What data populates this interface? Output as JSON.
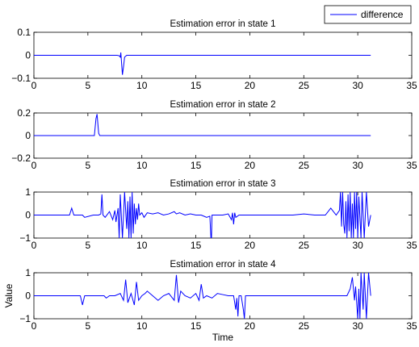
{
  "legend": {
    "label": "difference",
    "placement": "top-right",
    "color": "#0000ff"
  },
  "chart_data": [
    {
      "type": "line",
      "title": "Estimation error in state 1",
      "xlabel": "",
      "ylabel": "",
      "xlim": [
        0,
        35
      ],
      "ylim": [
        -0.1,
        0.1
      ],
      "xticks": [
        "0",
        "5",
        "10",
        "15",
        "20",
        "25",
        "30",
        "35"
      ],
      "yticks": [
        "−0.1",
        "0",
        "0.1"
      ],
      "ytick_values": [
        -0.1,
        0,
        0.1
      ],
      "series": [
        {
          "name": "difference",
          "color": "#0000ff",
          "x": [
            0,
            7.7,
            7.9,
            8.0,
            8.05,
            8.1,
            8.2,
            8.3,
            8.4,
            8.6,
            9.0,
            31.2
          ],
          "y": [
            0,
            0,
            -0.002,
            -0.008,
            0.012,
            -0.02,
            -0.085,
            -0.05,
            -0.008,
            0,
            0,
            0
          ]
        }
      ]
    },
    {
      "type": "line",
      "title": "Estimation error in state 2",
      "xlabel": "",
      "ylabel": "",
      "xlim": [
        0,
        35
      ],
      "ylim": [
        -0.2,
        0.2
      ],
      "xticks": [
        "0",
        "5",
        "10",
        "15",
        "20",
        "25",
        "30",
        "35"
      ],
      "yticks": [
        "−0.2",
        "0",
        "0.2"
      ],
      "ytick_values": [
        -0.2,
        0,
        0.2
      ],
      "series": [
        {
          "name": "difference",
          "color": "#0000ff",
          "x": [
            0,
            5.6,
            5.75,
            5.85,
            6.0,
            6.1,
            31.2
          ],
          "y": [
            0,
            0,
            0.15,
            0.19,
            0.02,
            0,
            0
          ]
        }
      ]
    },
    {
      "type": "line",
      "title": "Estimation error in state 3",
      "xlabel": "",
      "ylabel": "",
      "xlim": [
        0,
        35
      ],
      "ylim": [
        -1,
        1
      ],
      "xticks": [
        "0",
        "5",
        "10",
        "15",
        "20",
        "25",
        "30",
        "35"
      ],
      "yticks": [
        "−1",
        "0",
        "1"
      ],
      "ytick_values": [
        -1,
        0,
        1
      ],
      "series": [
        {
          "name": "difference",
          "color": "#0000ff",
          "x": [
            0,
            3.3,
            3.5,
            3.7,
            4.5,
            4.7,
            5.5,
            6.0,
            6.2,
            6.3,
            6.4,
            6.6,
            7.0,
            7.3,
            7.5,
            7.6,
            7.8,
            7.9,
            8.0,
            8.2,
            8.4,
            8.6,
            8.7,
            8.8,
            8.9,
            9.0,
            9.1,
            9.2,
            9.3,
            9.4,
            9.5,
            9.6,
            9.7,
            9.8,
            10.0,
            10.2,
            10.5,
            11.0,
            11.5,
            12.0,
            12.5,
            13.0,
            13.2,
            13.5,
            14.0,
            14.5,
            15.0,
            15.5,
            16.0,
            16.3,
            16.4,
            16.45,
            16.5,
            16.6,
            17.0,
            17.5,
            18.0,
            18.3,
            18.4,
            18.5,
            18.6,
            18.7,
            19.0,
            19.5,
            20.0,
            21.0,
            22.0,
            23.0,
            24.0,
            25.0,
            26.0,
            27.0,
            27.5,
            28.0,
            28.3,
            28.4,
            28.5,
            28.6,
            28.7,
            28.8,
            28.9,
            29.0,
            29.1,
            29.2,
            29.3,
            29.4,
            29.5,
            29.6,
            29.7,
            29.8,
            29.9,
            30.0,
            30.1,
            30.3,
            30.4,
            30.6,
            30.8,
            31.0,
            31.2
          ],
          "y": [
            0,
            0,
            0.3,
            0,
            0,
            -0.1,
            0,
            0,
            0.05,
            0.9,
            0,
            -0.1,
            0.15,
            -0.2,
            0.2,
            -0.3,
            0.3,
            -1,
            0.9,
            -1,
            1,
            -0.6,
            0.6,
            -1,
            0.8,
            -1,
            1,
            -0.8,
            0.5,
            -0.4,
            0.3,
            -0.2,
            0.5,
            0,
            0.1,
            -0.1,
            0.1,
            0.05,
            0.1,
            0,
            0.05,
            0.15,
            0.05,
            0.1,
            0,
            0.05,
            0,
            0,
            -0.1,
            -0.05,
            -1,
            -1,
            0,
            0,
            0,
            0,
            0.05,
            -0.2,
            0.1,
            -0.4,
            0.1,
            -0.1,
            0,
            0,
            0,
            0,
            0,
            0,
            0,
            0.05,
            0,
            0,
            0.3,
            0,
            0.2,
            1,
            -0.5,
            1,
            -0.4,
            -0.8,
            0.6,
            -1,
            0.9,
            -0.7,
            1,
            -1,
            0.5,
            -1,
            1,
            -0.6,
            1,
            -1,
            0.8,
            -1,
            1,
            -1,
            1,
            -0.5,
            0
          ]
        }
      ]
    },
    {
      "type": "line",
      "title": "Estimation error in state 4",
      "xlabel": "Time",
      "ylabel": "Value",
      "xlim": [
        0,
        35
      ],
      "ylim": [
        -1,
        1
      ],
      "xticks": [
        "0",
        "5",
        "10",
        "15",
        "20",
        "25",
        "30",
        "35"
      ],
      "yticks": [
        "−1",
        "0",
        "1"
      ],
      "ytick_values": [
        -1,
        0,
        1
      ],
      "series": [
        {
          "name": "difference",
          "color": "#0000ff",
          "x": [
            0,
            4.3,
            4.5,
            4.7,
            5.0,
            6.5,
            6.7,
            7.0,
            7.5,
            8.0,
            8.3,
            8.5,
            8.7,
            9.0,
            9.3,
            9.5,
            9.7,
            10.0,
            10.3,
            10.5,
            11.0,
            11.5,
            12.0,
            12.5,
            13.0,
            13.2,
            13.4,
            13.6,
            14.0,
            14.5,
            15.0,
            15.3,
            15.5,
            15.7,
            16.0,
            16.5,
            17.0,
            17.5,
            18.0,
            18.5,
            18.7,
            18.8,
            18.9,
            19.0,
            19.2,
            19.4,
            19.5,
            19.6,
            19.7,
            20.0,
            21.0,
            22.0,
            23.0,
            24.0,
            25.0,
            26.0,
            27.0,
            28.0,
            29.0,
            29.3,
            29.5,
            29.7,
            29.8,
            30.0,
            30.1,
            30.2,
            30.3,
            30.5,
            30.6,
            30.8,
            31.0,
            31.2
          ],
          "y": [
            0,
            0,
            -0.4,
            0,
            0,
            0,
            -0.1,
            0,
            0,
            0.1,
            -0.2,
            0.7,
            -0.3,
            0.1,
            -0.4,
            0.6,
            -0.2,
            0,
            0.1,
            0.2,
            0,
            -0.2,
            0,
            0.1,
            -0.2,
            0.9,
            -0.3,
            0.2,
            0,
            -0.1,
            0.1,
            -0.2,
            0.5,
            -0.1,
            0,
            -0.1,
            0.1,
            0.05,
            0,
            0,
            -0.6,
            -0.1,
            -0.9,
            0,
            0,
            -0.6,
            -1,
            0,
            0,
            0,
            0,
            0,
            0,
            0,
            0,
            0,
            0,
            0,
            0,
            0.3,
            0.8,
            -0.2,
            0.4,
            -1,
            0.3,
            -1,
            1,
            -0.6,
            1,
            -1,
            1,
            0
          ]
        }
      ]
    }
  ]
}
